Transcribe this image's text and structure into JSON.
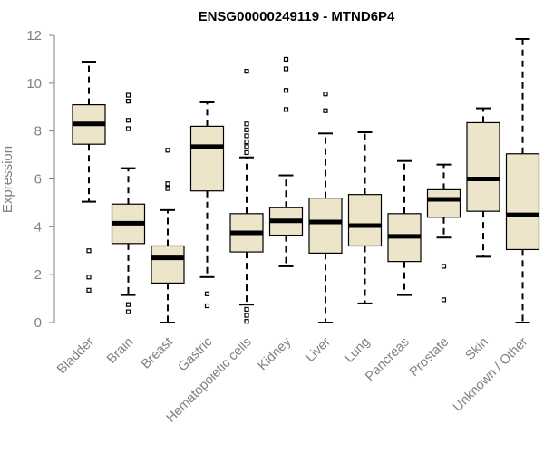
{
  "chart_data": {
    "type": "boxplot",
    "title": "ENSG00000249119 - MTND6P4",
    "xlabel": "",
    "ylabel": "Expression",
    "ylim": [
      0,
      12
    ],
    "yticks": [
      0,
      2,
      4,
      6,
      8,
      10,
      12
    ],
    "grid": false,
    "colors": {
      "box_fill": "#ede5c9",
      "stroke": "#000000",
      "axis": "#808080"
    },
    "categories": [
      "Bladder",
      "Brain",
      "Breast",
      "Gastric",
      "Hematopoietic cells",
      "Kidney",
      "Liver",
      "Lung",
      "Pancreas",
      "Prostate",
      "Skin",
      "Unknown / Other"
    ],
    "boxes": [
      {
        "category": "Bladder",
        "whisker_low": 5.05,
        "q1": 7.45,
        "median": 8.3,
        "q3": 9.1,
        "whisker_high": 10.9,
        "outliers": [
          3.0,
          1.9,
          1.35
        ]
      },
      {
        "category": "Brain",
        "whisker_low": 1.15,
        "q1": 3.3,
        "median": 4.15,
        "q3": 4.95,
        "whisker_high": 6.45,
        "outliers": [
          9.5,
          9.25,
          8.45,
          8.1,
          0.75,
          0.45
        ]
      },
      {
        "category": "Breast",
        "whisker_low": 0.0,
        "q1": 1.65,
        "median": 2.7,
        "q3": 3.2,
        "whisker_high": 4.7,
        "outliers": [
          7.2,
          5.8,
          5.6
        ]
      },
      {
        "category": "Gastric",
        "whisker_low": 1.9,
        "q1": 5.5,
        "median": 7.35,
        "q3": 8.2,
        "whisker_high": 9.2,
        "outliers": [
          1.2,
          0.7
        ]
      },
      {
        "category": "Hematopoietic cells",
        "whisker_low": 0.75,
        "q1": 2.95,
        "median": 3.75,
        "q3": 4.55,
        "whisker_high": 6.9,
        "outliers": [
          10.5,
          8.3,
          8.05,
          7.8,
          7.55,
          7.35,
          7.1,
          0.55,
          0.3,
          0.05
        ]
      },
      {
        "category": "Kidney",
        "whisker_low": 2.35,
        "q1": 3.65,
        "median": 4.25,
        "q3": 4.8,
        "whisker_high": 6.15,
        "outliers": [
          11.0,
          10.6,
          9.7,
          8.9
        ]
      },
      {
        "category": "Liver",
        "whisker_low": 0.0,
        "q1": 2.9,
        "median": 4.2,
        "q3": 5.2,
        "whisker_high": 7.9,
        "outliers": [
          9.55,
          8.85
        ]
      },
      {
        "category": "Lung",
        "whisker_low": 0.8,
        "q1": 3.2,
        "median": 4.05,
        "q3": 5.35,
        "whisker_high": 7.95,
        "outliers": []
      },
      {
        "category": "Pancreas",
        "whisker_low": 1.15,
        "q1": 2.55,
        "median": 3.6,
        "q3": 4.55,
        "whisker_high": 6.75,
        "outliers": []
      },
      {
        "category": "Prostate",
        "whisker_low": 3.55,
        "q1": 4.4,
        "median": 5.15,
        "q3": 5.55,
        "whisker_high": 6.6,
        "outliers": [
          2.35,
          0.95
        ]
      },
      {
        "category": "Skin",
        "whisker_low": 2.75,
        "q1": 4.65,
        "median": 6.0,
        "q3": 8.35,
        "whisker_high": 8.95,
        "outliers": []
      },
      {
        "category": "Unknown / Other",
        "whisker_low": 0.0,
        "q1": 3.05,
        "median": 4.5,
        "q3": 7.05,
        "whisker_high": 11.85,
        "outliers": []
      }
    ]
  }
}
